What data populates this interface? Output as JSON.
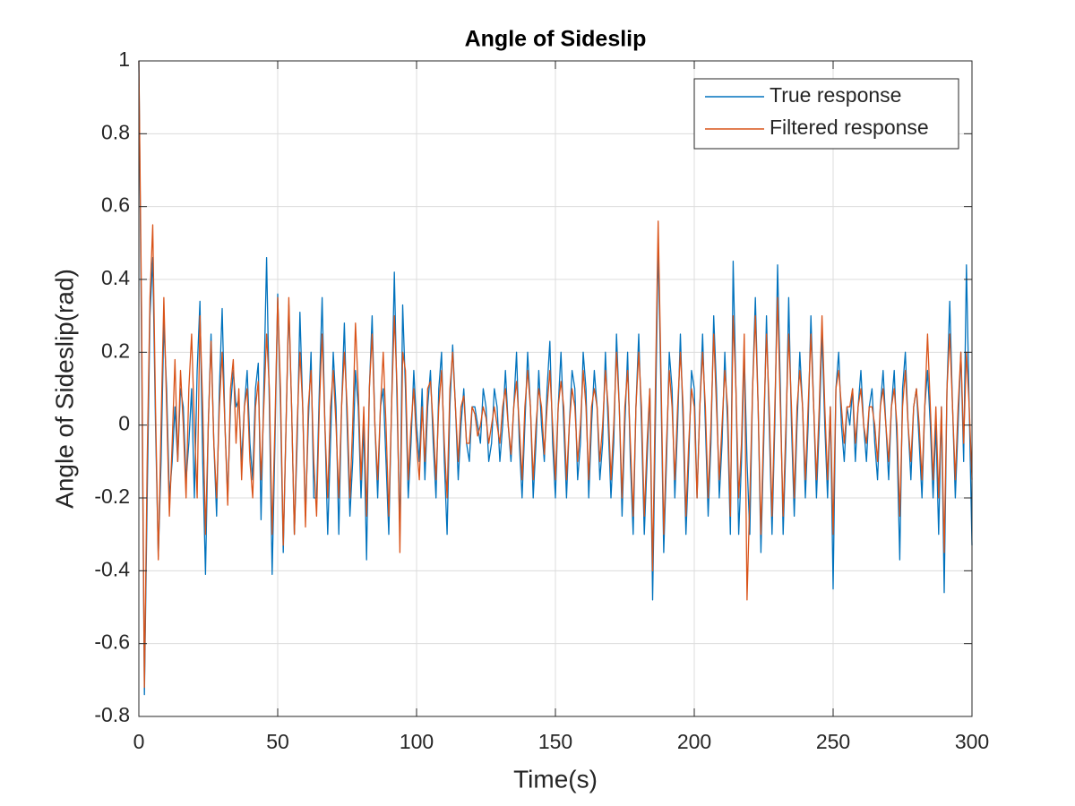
{
  "chart_data": {
    "type": "line",
    "title": "Angle of Sideslip",
    "x_label": "Time(s)",
    "y_label": "Angle of Sideslip(rad)",
    "xlim": [
      0,
      300
    ],
    "ylim": [
      -0.8,
      1
    ],
    "xticks": [
      0,
      50,
      100,
      150,
      200,
      250,
      300
    ],
    "yticks": [
      -0.8,
      -0.6,
      -0.4,
      -0.2,
      0,
      0.2,
      0.4,
      0.6,
      0.8,
      1
    ],
    "grid": true,
    "legend_position": "northeast",
    "x": [
      0,
      1,
      2,
      3,
      4,
      5,
      6,
      7,
      8,
      9,
      10,
      11,
      12,
      13,
      14,
      15,
      16,
      17,
      18,
      19,
      20,
      21,
      22,
      23,
      24,
      25,
      26,
      27,
      28,
      29,
      30,
      31,
      32,
      33,
      34,
      35,
      36,
      37,
      38,
      39,
      40,
      41,
      42,
      43,
      44,
      45,
      46,
      47,
      48,
      49,
      50,
      51,
      52,
      53,
      54,
      55,
      56,
      57,
      58,
      59,
      60,
      61,
      62,
      63,
      64,
      65,
      66,
      67,
      68,
      69,
      70,
      71,
      72,
      73,
      74,
      75,
      76,
      77,
      78,
      79,
      80,
      81,
      82,
      83,
      84,
      85,
      86,
      87,
      88,
      89,
      90,
      91,
      92,
      93,
      94,
      95,
      96,
      97,
      98,
      99,
      100,
      101,
      102,
      103,
      104,
      105,
      106,
      107,
      108,
      109,
      110,
      111,
      112,
      113,
      114,
      115,
      116,
      117,
      118,
      119,
      120,
      121,
      122,
      123,
      124,
      125,
      126,
      127,
      128,
      129,
      130,
      131,
      132,
      133,
      134,
      135,
      136,
      137,
      138,
      139,
      140,
      141,
      142,
      143,
      144,
      145,
      146,
      147,
      148,
      149,
      150,
      151,
      152,
      153,
      154,
      155,
      156,
      157,
      158,
      159,
      160,
      161,
      162,
      163,
      164,
      165,
      166,
      167,
      168,
      169,
      170,
      171,
      172,
      173,
      174,
      175,
      176,
      177,
      178,
      179,
      180,
      181,
      182,
      183,
      184,
      185,
      186,
      187,
      188,
      189,
      190,
      191,
      192,
      193,
      194,
      195,
      196,
      197,
      198,
      199,
      200,
      201,
      202,
      203,
      204,
      205,
      206,
      207,
      208,
      209,
      210,
      211,
      212,
      213,
      214,
      215,
      216,
      217,
      218,
      219,
      220,
      221,
      222,
      223,
      224,
      225,
      226,
      227,
      228,
      229,
      230,
      231,
      232,
      233,
      234,
      235,
      236,
      237,
      238,
      239,
      240,
      241,
      242,
      243,
      244,
      245,
      246,
      247,
      248,
      249,
      250,
      251,
      252,
      253,
      254,
      255,
      256,
      257,
      258,
      259,
      260,
      261,
      262,
      263,
      264,
      265,
      266,
      267,
      268,
      269,
      270,
      271,
      272,
      273,
      274,
      275,
      276,
      277,
      278,
      279,
      280,
      281,
      282,
      283,
      284,
      285,
      286,
      287,
      288,
      289,
      290,
      291,
      292,
      293,
      294,
      295,
      296,
      297,
      298,
      299,
      300
    ],
    "series": [
      {
        "name": "True response",
        "color": "#0072bd",
        "values": [
          1.0,
          0.2,
          -0.74,
          -0.2,
          0.3,
          0.46,
          0.0,
          -0.36,
          -0.1,
          0.28,
          0.1,
          -0.2,
          -0.1,
          0.05,
          -0.1,
          0.1,
          0.05,
          -0.15,
          -0.05,
          0.1,
          -0.2,
          0.15,
          0.34,
          -0.1,
          -0.41,
          0.0,
          0.25,
          -0.05,
          -0.25,
          0.1,
          0.32,
          0.0,
          -0.2,
          0.05,
          0.15,
          0.05,
          0.07,
          -0.1,
          0.05,
          0.15,
          -0.05,
          -0.15,
          0.1,
          0.17,
          -0.26,
          0.1,
          0.46,
          0.05,
          -0.41,
          -0.05,
          0.36,
          0.05,
          -0.35,
          0.0,
          0.33,
          0.05,
          -0.3,
          -0.05,
          0.31,
          0.05,
          -0.25,
          0.0,
          0.2,
          -0.2,
          -0.2,
          0.1,
          0.35,
          0.0,
          -0.3,
          -0.05,
          0.2,
          0.05,
          -0.3,
          0.05,
          0.28,
          0.0,
          -0.25,
          -0.1,
          0.15,
          0.05,
          -0.2,
          0.0,
          -0.37,
          0.1,
          0.3,
          0.0,
          -0.2,
          0.05,
          0.1,
          -0.1,
          -0.3,
          0.05,
          0.42,
          0.05,
          -0.3,
          0.33,
          0.1,
          -0.2,
          -0.05,
          0.15,
          0.0,
          -0.1,
          0.1,
          -0.15,
          0.05,
          0.15,
          -0.05,
          -0.2,
          0.1,
          0.2,
          -0.1,
          -0.3,
          0.05,
          0.22,
          0.05,
          -0.15,
          0.0,
          0.1,
          -0.05,
          -0.1,
          0.05,
          0.05,
          0.0,
          -0.05,
          0.1,
          0.05,
          -0.1,
          -0.05,
          0.1,
          0.05,
          -0.1,
          0.0,
          0.15,
          0.0,
          -0.1,
          0.05,
          0.2,
          -0.05,
          -0.2,
          0.0,
          0.2,
          0.05,
          -0.2,
          -0.05,
          0.15,
          0.0,
          -0.1,
          0.1,
          0.23,
          -0.05,
          -0.2,
          0.05,
          0.2,
          0.0,
          -0.2,
          0.0,
          0.15,
          0.1,
          -0.15,
          -0.05,
          0.2,
          0.1,
          -0.2,
          0.0,
          0.15,
          0.05,
          -0.15,
          -0.05,
          0.2,
          0.0,
          -0.2,
          -0.05,
          0.25,
          0.05,
          -0.25,
          0.0,
          0.2,
          -0.1,
          -0.3,
          0.05,
          0.25,
          0.0,
          -0.3,
          -0.1,
          0.1,
          -0.48,
          0.0,
          0.5,
          0.1,
          -0.35,
          -0.1,
          0.2,
          0.1,
          -0.2,
          0.0,
          0.25,
          0.0,
          -0.3,
          -0.1,
          0.15,
          0.1,
          -0.2,
          0.05,
          0.25,
          0.0,
          -0.25,
          -0.05,
          0.3,
          0.1,
          -0.2,
          -0.05,
          0.2,
          0.0,
          -0.3,
          0.45,
          0.1,
          -0.3,
          -0.1,
          0.2,
          -0.1,
          -0.3,
          0.1,
          0.35,
          0.05,
          -0.35,
          -0.05,
          0.3,
          0.0,
          -0.3,
          0.0,
          0.44,
          0.1,
          -0.3,
          -0.05,
          0.35,
          0.0,
          -0.25,
          0.0,
          0.2,
          0.05,
          -0.2,
          0.0,
          0.3,
          0.05,
          -0.2,
          0.0,
          0.25,
          0.0,
          -0.2,
          0.05,
          -0.45,
          0.1,
          0.2,
          0.0,
          -0.1,
          0.05,
          0.0,
          0.1,
          -0.1,
          0.05,
          0.15,
          0.0,
          -0.1,
          0.05,
          0.1,
          -0.05,
          -0.15,
          0.05,
          0.15,
          0.0,
          -0.15,
          0.05,
          0.15,
          -0.05,
          -0.37,
          0.1,
          0.2,
          0.0,
          -0.15,
          0.05,
          0.1,
          -0.05,
          -0.2,
          0.05,
          0.15,
          0.0,
          -0.2,
          0.0,
          -0.3,
          0.05,
          -0.46,
          0.1,
          0.34,
          0.05,
          -0.2,
          0.0,
          0.2,
          -0.1,
          0.44,
          0.05,
          -0.33
        ]
      },
      {
        "name": "Filtered response",
        "color": "#d95319",
        "values": [
          1.0,
          0.3,
          -0.72,
          -0.1,
          0.35,
          0.55,
          0.05,
          -0.37,
          0.0,
          0.35,
          0.05,
          -0.25,
          -0.05,
          0.18,
          -0.1,
          0.15,
          0.0,
          -0.2,
          0.1,
          0.25,
          0.0,
          -0.2,
          0.3,
          0.05,
          -0.3,
          0.0,
          0.23,
          -0.05,
          -0.2,
          0.05,
          0.2,
          0.0,
          -0.22,
          0.1,
          0.18,
          -0.05,
          0.1,
          -0.15,
          0.05,
          0.1,
          -0.1,
          -0.2,
          0.05,
          0.12,
          -0.15,
          0.05,
          0.25,
          0.1,
          -0.3,
          0.0,
          0.35,
          0.1,
          -0.33,
          0.0,
          0.35,
          0.05,
          -0.3,
          0.0,
          0.2,
          0.05,
          -0.28,
          0.05,
          0.15,
          -0.1,
          -0.25,
          0.05,
          0.25,
          0.0,
          -0.2,
          0.05,
          0.15,
          0.0,
          -0.2,
          0.05,
          0.2,
          0.05,
          -0.2,
          0.0,
          0.28,
          0.1,
          -0.15,
          0.05,
          -0.25,
          0.1,
          0.25,
          0.0,
          -0.15,
          0.05,
          0.2,
          0.0,
          -0.25,
          0.05,
          0.3,
          0.1,
          -0.35,
          0.2,
          0.15,
          -0.15,
          0.0,
          0.1,
          -0.05,
          -0.15,
          0.05,
          -0.1,
          0.1,
          0.12,
          0.0,
          -0.15,
          0.05,
          0.15,
          -0.05,
          -0.2,
          0.1,
          0.2,
          0.05,
          -0.1,
          0.05,
          0.08,
          -0.05,
          -0.05,
          0.05,
          0.03,
          -0.03,
          0.0,
          0.05,
          0.02,
          -0.05,
          0.0,
          0.05,
          0.0,
          -0.05,
          0.05,
          0.1,
          0.0,
          -0.08,
          0.05,
          0.12,
          0.0,
          -0.15,
          0.05,
          0.15,
          0.05,
          -0.15,
          0.0,
          0.1,
          0.05,
          -0.08,
          0.05,
          0.15,
          0.0,
          -0.15,
          0.05,
          0.12,
          0.05,
          -0.15,
          0.0,
          0.1,
          0.05,
          -0.1,
          0.0,
          0.15,
          0.05,
          -0.15,
          0.05,
          0.1,
          0.05,
          -0.1,
          0.0,
          0.15,
          0.05,
          -0.15,
          0.0,
          0.2,
          0.05,
          -0.2,
          0.05,
          0.15,
          -0.05,
          -0.25,
          0.05,
          0.2,
          0.05,
          -0.25,
          -0.05,
          0.1,
          -0.4,
          0.1,
          0.56,
          0.15,
          -0.3,
          -0.05,
          0.15,
          0.05,
          -0.15,
          0.05,
          0.2,
          0.05,
          -0.25,
          -0.05,
          0.1,
          0.05,
          -0.2,
          0.05,
          0.2,
          0.05,
          -0.2,
          0.0,
          0.25,
          0.05,
          -0.15,
          0.0,
          0.15,
          0.05,
          -0.25,
          0.3,
          0.1,
          -0.2,
          -0.05,
          0.25,
          -0.48,
          -0.2,
          0.1,
          0.3,
          0.05,
          -0.3,
          0.0,
          0.25,
          0.05,
          -0.25,
          0.05,
          0.35,
          0.05,
          -0.25,
          0.0,
          0.25,
          0.05,
          -0.2,
          0.05,
          0.15,
          0.05,
          -0.15,
          0.05,
          0.25,
          0.05,
          -0.15,
          0.05,
          0.3,
          0.05,
          -0.15,
          0.05,
          -0.3,
          0.1,
          0.15,
          0.05,
          -0.05,
          0.05,
          0.05,
          0.1,
          -0.05,
          0.05,
          0.1,
          0.0,
          -0.05,
          0.05,
          0.05,
          0.0,
          -0.1,
          0.05,
          0.1,
          0.0,
          -0.1,
          0.05,
          0.1,
          0.0,
          -0.25,
          0.05,
          0.15,
          0.0,
          -0.1,
          0.05,
          0.1,
          0.0,
          -0.15,
          0.05,
          0.25,
          0.05,
          -0.15,
          0.05,
          -0.2,
          0.05,
          -0.35,
          0.1,
          0.25,
          0.05,
          -0.15,
          0.05,
          0.2,
          -0.05,
          0.2,
          0.05,
          -0.15
        ]
      }
    ]
  }
}
